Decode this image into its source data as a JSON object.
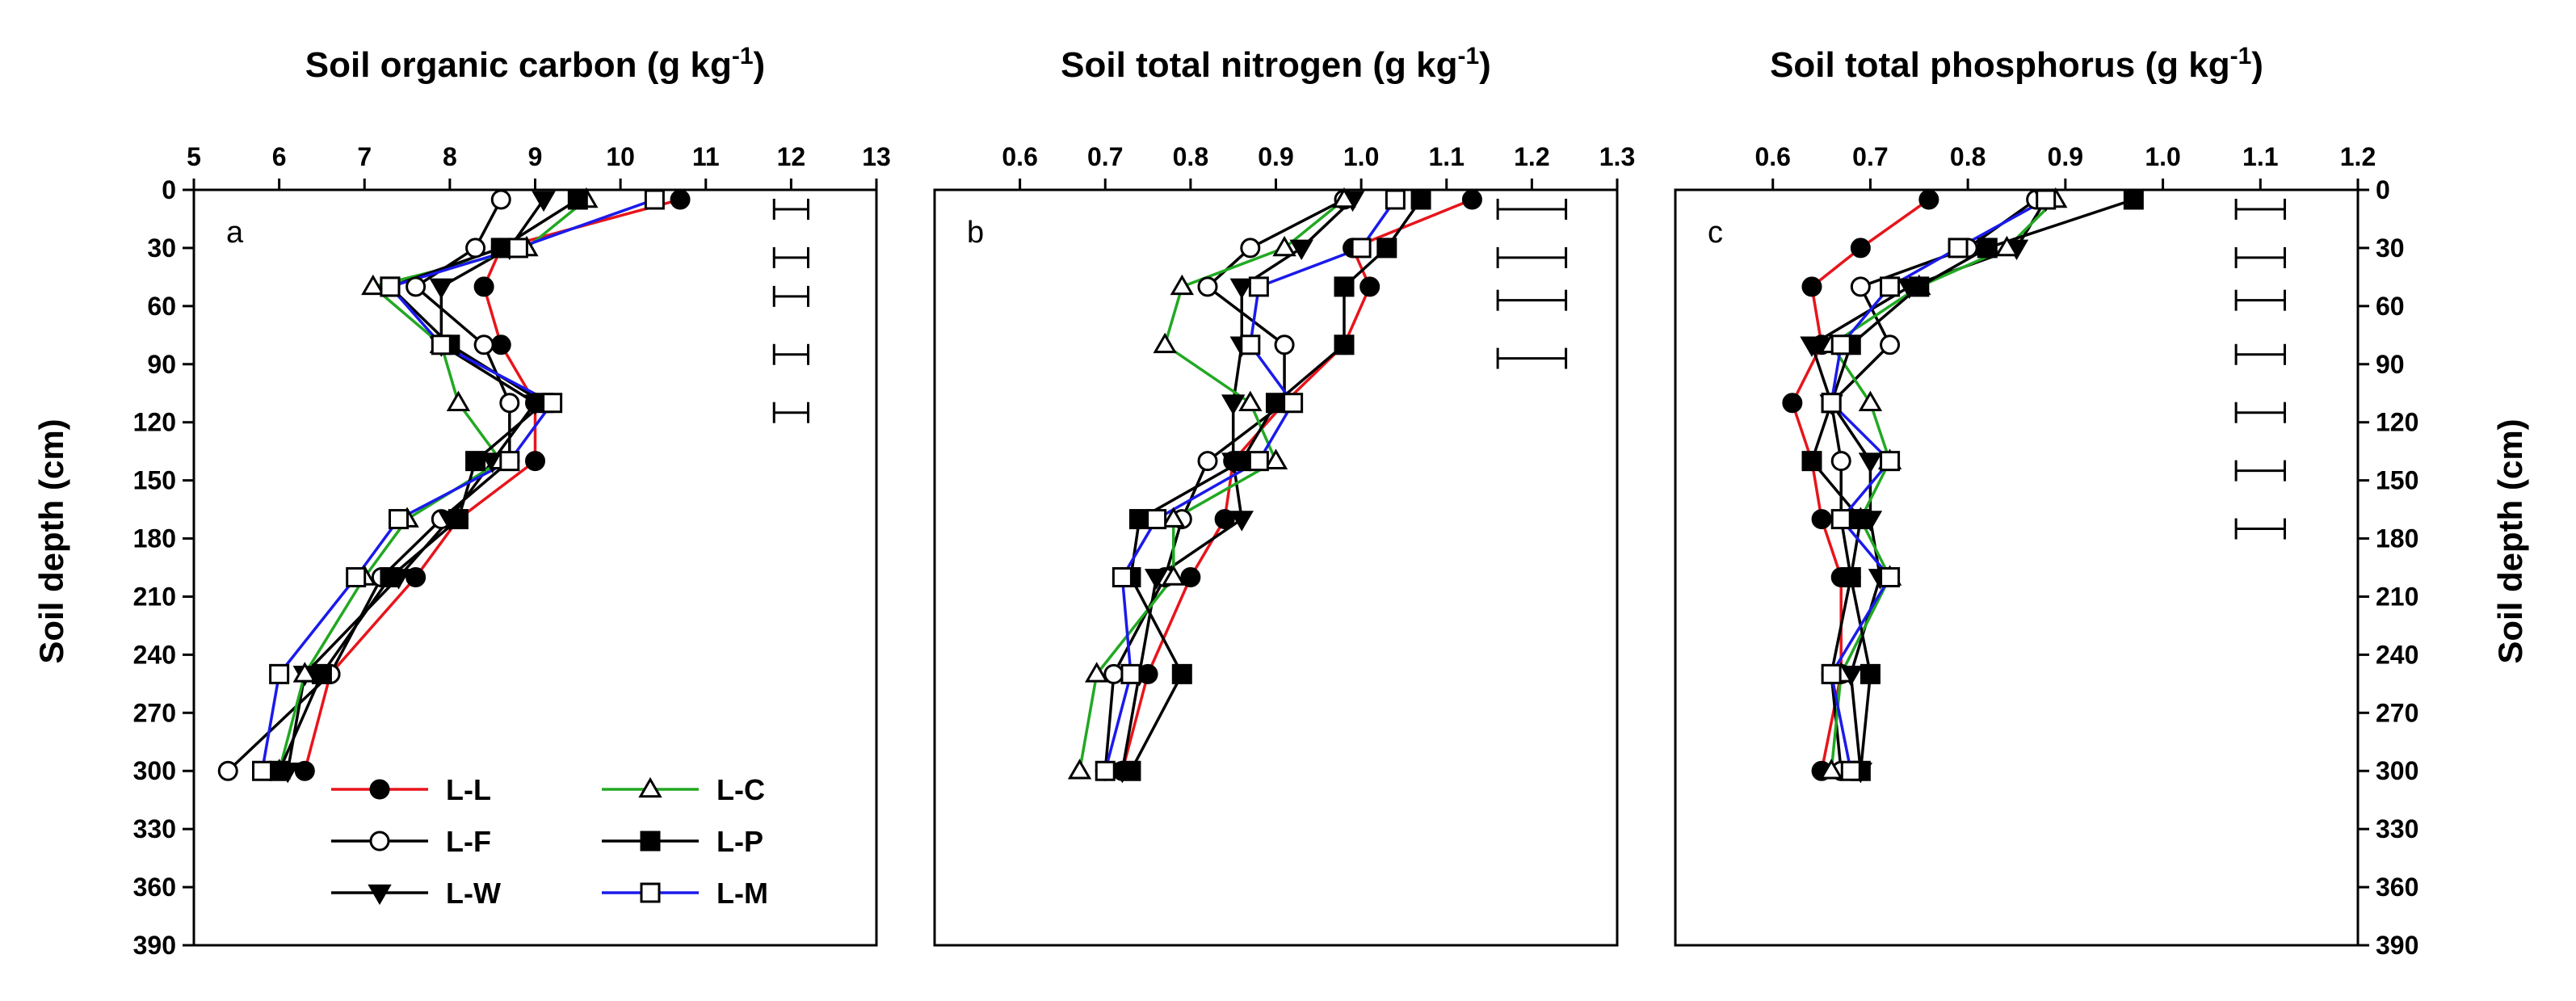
{
  "y_axis": {
    "label": "Soil depth (cm)",
    "range": [
      0,
      390
    ],
    "ticks": [
      0,
      30,
      60,
      90,
      120,
      150,
      180,
      210,
      240,
      270,
      300,
      330,
      360,
      390
    ]
  },
  "legend": {
    "placement": "bottom-left of panel a",
    "entries": [
      {
        "label": "L-L",
        "color": "#e8141b",
        "marker": "filled-circle"
      },
      {
        "label": "L-F",
        "color": "#000000",
        "marker": "open-circle"
      },
      {
        "label": "L-W",
        "color": "#000000",
        "marker": "filled-triangle-down"
      },
      {
        "label": "L-C",
        "color": "#22a822",
        "marker": "open-triangle-up"
      },
      {
        "label": "L-P",
        "color": "#000000",
        "marker": "filled-square"
      },
      {
        "label": "L-M",
        "color": "#1a1aeb",
        "marker": "open-square"
      }
    ]
  },
  "chart_data": [
    {
      "type": "line",
      "letter": "a",
      "title": "Soil organic carbon (g kg",
      "title_sup": "-1",
      "title_end": ")",
      "xlim": [
        5,
        13
      ],
      "xticks": [
        5,
        6,
        7,
        8,
        9,
        10,
        11,
        12,
        13
      ],
      "tick_decimals": 0,
      "depths": [
        5,
        30,
        50,
        80,
        110,
        140,
        170,
        200,
        250,
        300
      ],
      "series": [
        {
          "name": "L-L",
          "values": [
            10.7,
            8.6,
            8.4,
            8.6,
            9.0,
            9.0,
            8.1,
            7.6,
            6.6,
            6.3
          ]
        },
        {
          "name": "L-F",
          "values": [
            8.6,
            8.3,
            7.6,
            8.4,
            8.7,
            8.7,
            7.9,
            7.2,
            6.6,
            5.4
          ]
        },
        {
          "name": "L-W",
          "values": [
            9.1,
            8.7,
            7.9,
            7.9,
            9.0,
            8.5,
            8.0,
            7.4,
            6.3,
            6.1
          ]
        },
        {
          "name": "L-C",
          "values": [
            9.6,
            8.9,
            7.1,
            7.9,
            8.1,
            8.6,
            7.5,
            7.0,
            6.3,
            6.0
          ]
        },
        {
          "name": "L-P",
          "values": [
            9.5,
            8.6,
            7.3,
            8.0,
            9.1,
            8.3,
            8.1,
            7.3,
            6.5,
            6.0
          ]
        },
        {
          "name": "L-M",
          "values": [
            10.4,
            8.8,
            7.3,
            7.9,
            9.2,
            8.7,
            7.4,
            6.9,
            6.0,
            5.8
          ]
        }
      ],
      "error_bars": {
        "center": 12.0,
        "half_width": 0.2,
        "depths": [
          10,
          35,
          55,
          85,
          115
        ]
      }
    },
    {
      "type": "line",
      "letter": "b",
      "title": "Soil total nitrogen (g kg",
      "title_sup": "-1",
      "title_end": ")",
      "xlim": [
        0.5,
        1.3
      ],
      "xticks": [
        0.6,
        0.7,
        0.8,
        0.9,
        1.0,
        1.1,
        1.2,
        1.3
      ],
      "tick_decimals": 1,
      "depths": [
        5,
        30,
        50,
        80,
        110,
        140,
        170,
        200,
        250,
        300
      ],
      "series": [
        {
          "name": "L-L",
          "values": [
            1.13,
            0.99,
            1.01,
            0.98,
            0.91,
            0.85,
            0.84,
            0.8,
            0.75,
            0.72
          ]
        },
        {
          "name": "L-F",
          "values": [
            0.98,
            0.87,
            0.82,
            0.91,
            0.91,
            0.82,
            0.79,
            0.77,
            0.71,
            0.7
          ]
        },
        {
          "name": "L-W",
          "values": [
            0.99,
            0.93,
            0.86,
            0.86,
            0.85,
            0.85,
            0.86,
            0.76,
            0.74,
            0.72
          ]
        },
        {
          "name": "L-C",
          "values": [
            0.98,
            0.91,
            0.79,
            0.77,
            0.87,
            0.9,
            0.78,
            0.78,
            0.69,
            0.67
          ]
        },
        {
          "name": "L-P",
          "values": [
            1.07,
            1.03,
            0.98,
            0.98,
            0.9,
            0.86,
            0.74,
            0.73,
            0.79,
            0.73
          ]
        },
        {
          "name": "L-M",
          "values": [
            1.04,
            1.0,
            0.88,
            0.87,
            0.92,
            0.88,
            0.76,
            0.72,
            0.73,
            0.7
          ]
        }
      ],
      "error_bars": {
        "center": 1.2,
        "half_width": 0.04,
        "depths": [
          10,
          35,
          57,
          87
        ]
      }
    },
    {
      "type": "line",
      "letter": "c",
      "title": "Soil total phosphorus (g kg",
      "title_sup": "-1",
      "title_end": ")",
      "xlim": [
        0.5,
        1.2
      ],
      "xticks": [
        0.6,
        0.7,
        0.8,
        0.9,
        1.0,
        1.1,
        1.2
      ],
      "tick_decimals": 1,
      "depths": [
        5,
        30,
        50,
        80,
        110,
        140,
        170,
        200,
        250,
        300
      ],
      "series": [
        {
          "name": "L-L",
          "values": [
            0.76,
            0.69,
            0.64,
            0.65,
            0.62,
            0.64,
            0.65,
            0.67,
            0.67,
            0.65
          ]
        },
        {
          "name": "L-F",
          "values": [
            0.87,
            0.8,
            0.69,
            0.72,
            0.66,
            0.67,
            0.67,
            0.68,
            0.66,
            0.67
          ]
        },
        {
          "name": "L-W",
          "values": [
            0.88,
            0.85,
            0.74,
            0.64,
            0.66,
            0.7,
            0.7,
            0.71,
            0.68,
            0.69
          ]
        },
        {
          "name": "L-C",
          "values": [
            0.89,
            0.84,
            0.75,
            0.66,
            0.7,
            0.72,
            0.69,
            0.72,
            0.67,
            0.66
          ]
        },
        {
          "name": "L-P",
          "values": [
            0.97,
            0.82,
            0.75,
            0.68,
            0.66,
            0.64,
            0.69,
            0.68,
            0.7,
            0.69
          ]
        },
        {
          "name": "L-M",
          "values": [
            0.88,
            0.79,
            0.72,
            0.67,
            0.66,
            0.72,
            0.67,
            0.72,
            0.66,
            0.68
          ]
        }
      ],
      "error_bars": {
        "center": 1.1,
        "half_width": 0.025,
        "depths": [
          10,
          35,
          57,
          85,
          115,
          145,
          175
        ]
      }
    }
  ]
}
